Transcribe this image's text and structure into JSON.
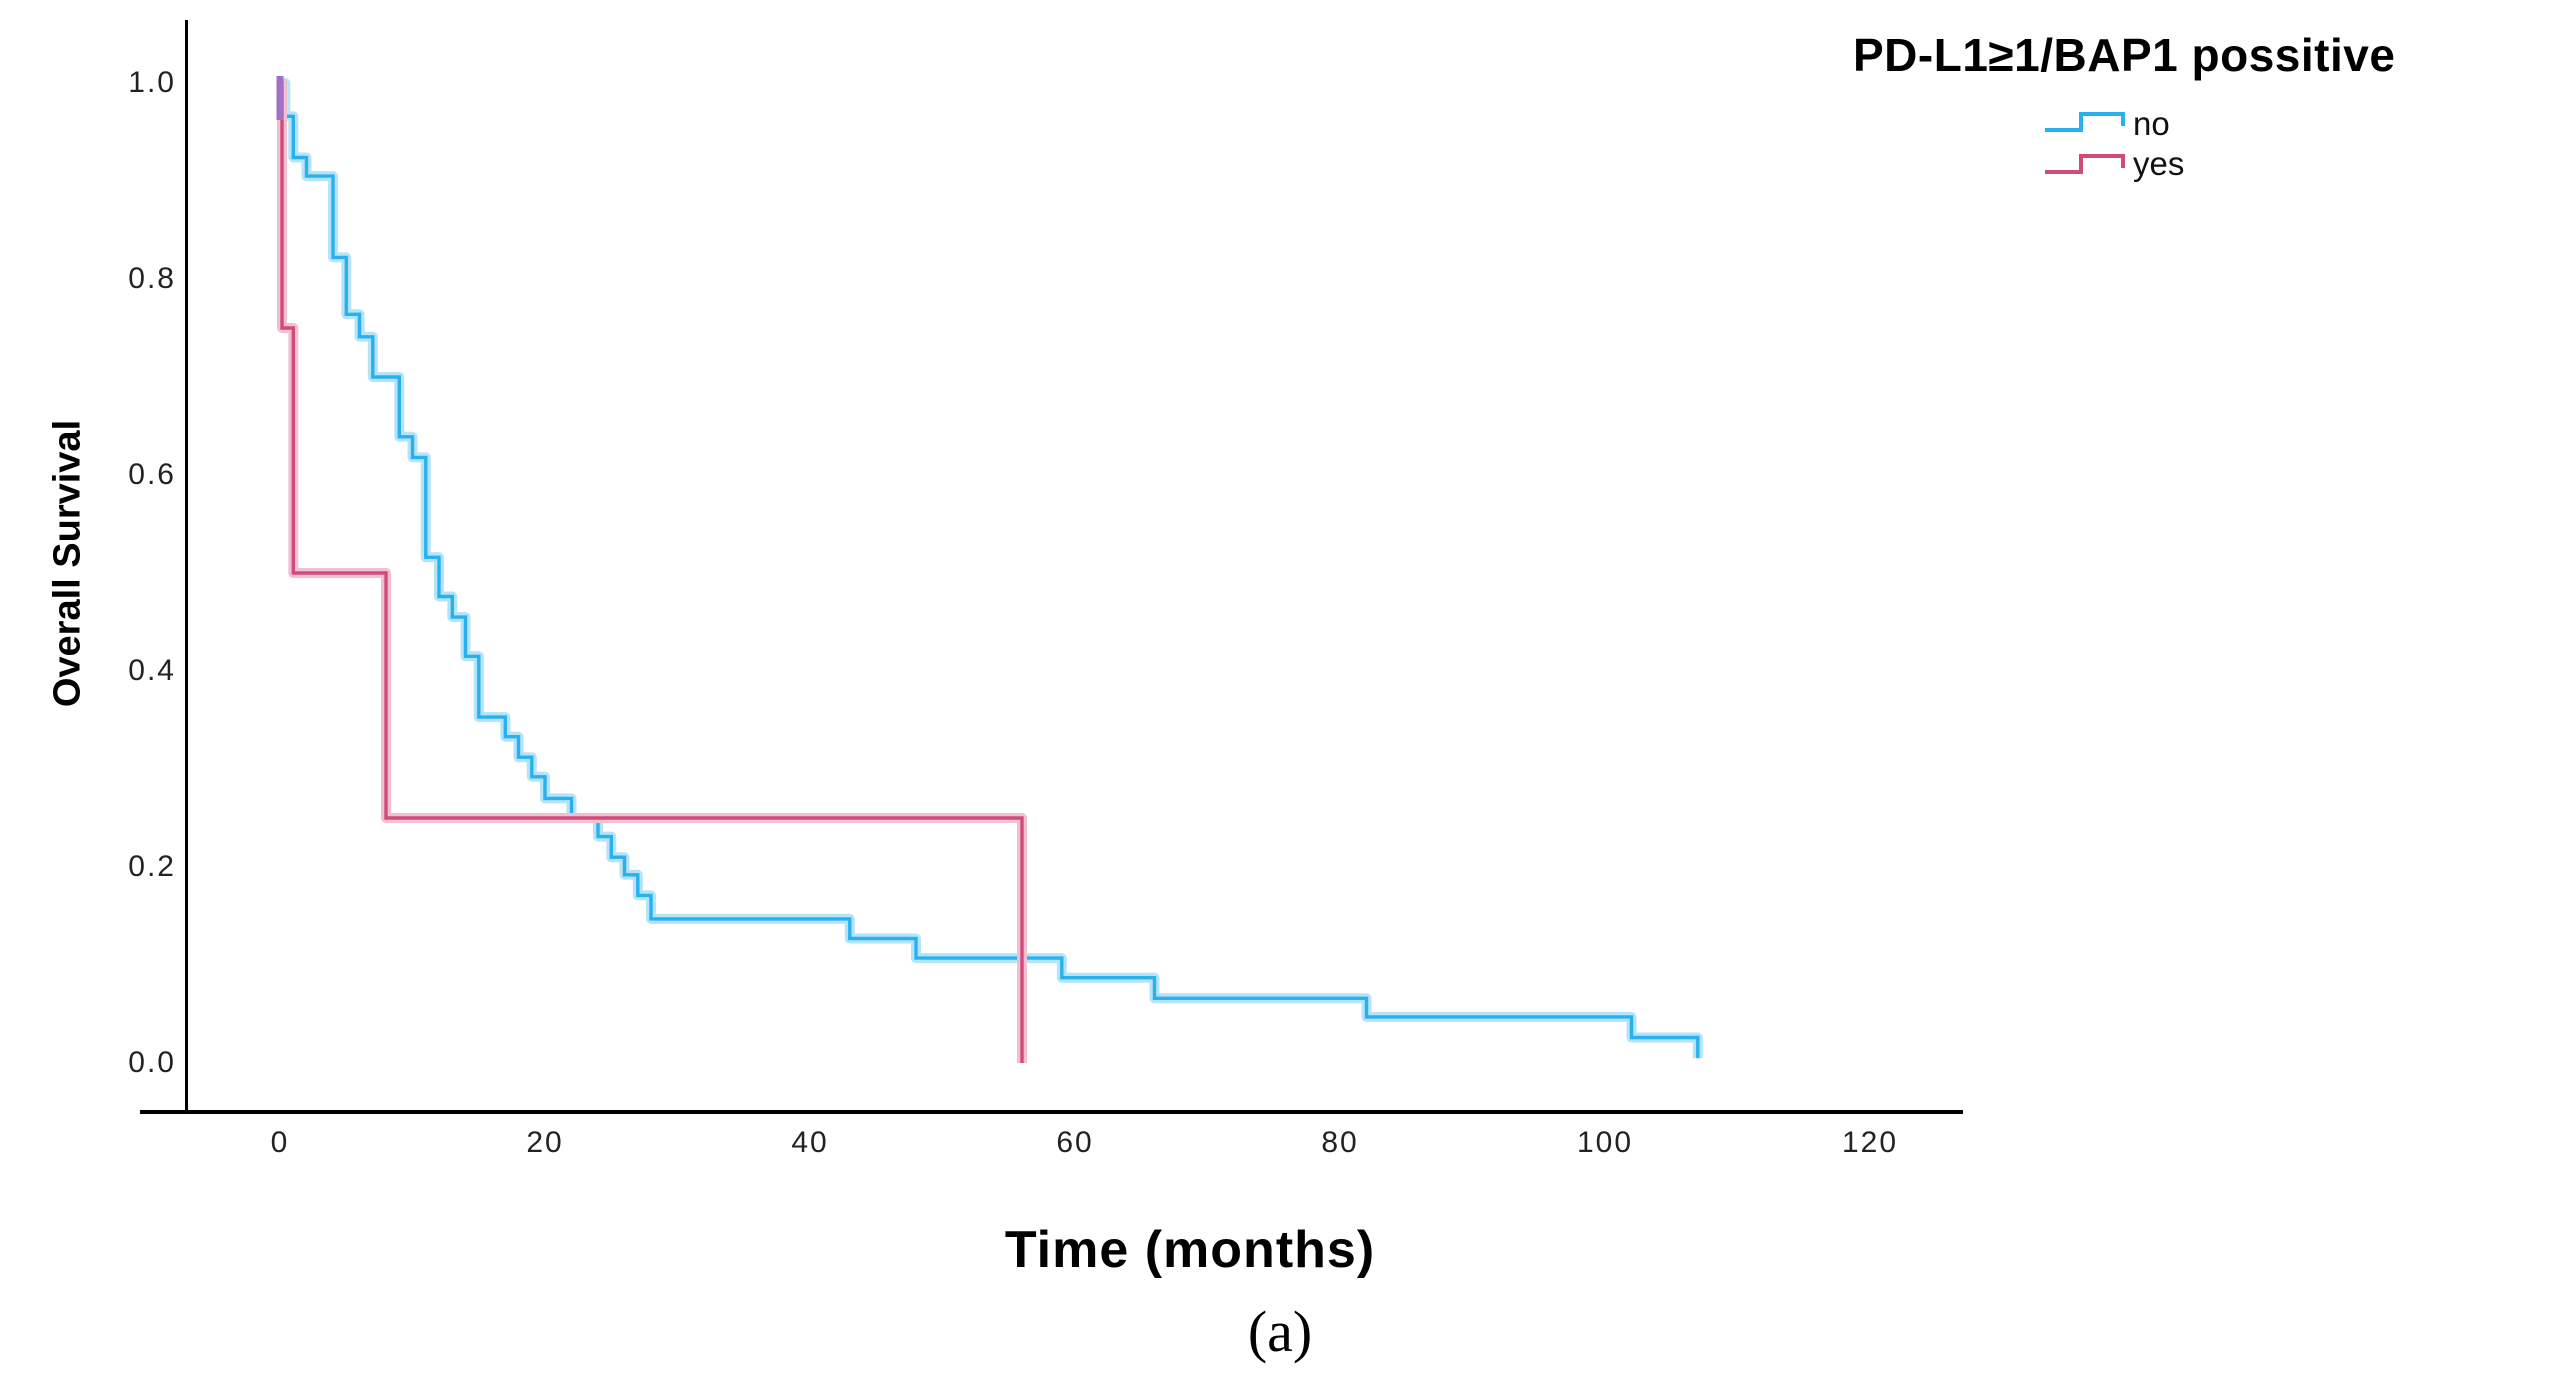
{
  "figure": {
    "panel_label": "(a)",
    "x_axis": {
      "label": "Time (months)",
      "tick_labels": [
        "0",
        "20",
        "40",
        "60",
        "80",
        "100",
        "120"
      ]
    },
    "y_axis": {
      "label": "Overall Survival",
      "tick_labels": [
        "1.0",
        "0.8",
        "0.6",
        "0.4",
        "0.2",
        "0.0"
      ]
    },
    "legend": {
      "title": "PD-L1≥1/BAP1 possitive",
      "entries": [
        {
          "label": "no",
          "color": "#29b1ef"
        },
        {
          "label": "yes",
          "color": "#d04b7c"
        }
      ]
    }
  },
  "chart_data": {
    "type": "line",
    "subtype": "kaplan-meier-step-curves",
    "title": "PD-L1≥1/BAP1 possitive",
    "xlabel": "Time (months)",
    "ylabel": "Overall Survival",
    "xlim": [
      -10,
      130
    ],
    "ylim": [
      0,
      1.0
    ],
    "x_ticks": [
      0,
      20,
      40,
      60,
      80,
      100,
      120
    ],
    "y_ticks": [
      1.0,
      0.8,
      0.6,
      0.4,
      0.2,
      0.0
    ],
    "grid": false,
    "legend_position": "top-right",
    "series": [
      {
        "name": "no",
        "color": "#29b1ef",
        "points": [
          [
            0,
            1.0
          ],
          [
            0.4,
            0.966
          ],
          [
            1,
            0.924
          ],
          [
            2,
            0.905
          ],
          [
            4,
            0.822
          ],
          [
            5,
            0.764
          ],
          [
            6,
            0.741
          ],
          [
            7,
            0.7
          ],
          [
            9,
            0.639
          ],
          [
            10,
            0.618
          ],
          [
            11,
            0.516
          ],
          [
            12,
            0.476
          ],
          [
            13,
            0.455
          ],
          [
            14,
            0.415
          ],
          [
            15,
            0.353
          ],
          [
            17,
            0.333
          ],
          [
            18,
            0.312
          ],
          [
            19,
            0.292
          ],
          [
            20,
            0.27
          ],
          [
            22,
            0.25
          ],
          [
            24,
            0.231
          ],
          [
            25,
            0.21
          ],
          [
            26,
            0.192
          ],
          [
            27,
            0.171
          ],
          [
            28,
            0.147
          ],
          [
            43,
            0.127
          ],
          [
            48,
            0.107
          ],
          [
            59,
            0.087
          ],
          [
            66,
            0.066
          ],
          [
            82,
            0.047
          ],
          [
            102,
            0.026
          ],
          [
            107,
            0.005
          ]
        ]
      },
      {
        "name": "yes",
        "color": "#d04b7c",
        "points": [
          [
            0,
            1.0
          ],
          [
            0.15,
            0.75
          ],
          [
            1,
            0.5
          ],
          [
            8,
            0.25
          ],
          [
            56,
            0.0
          ]
        ]
      }
    ]
  }
}
